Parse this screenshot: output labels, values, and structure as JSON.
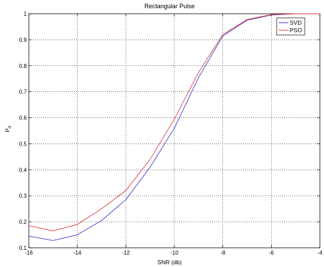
{
  "chart_data": {
    "type": "line",
    "title": "Rectangular Pulse",
    "xlabel": "SNR (db)",
    "ylabel": "P",
    "ylabel_sub": "d",
    "xlim": [
      -16,
      -4
    ],
    "ylim": [
      0.1,
      1
    ],
    "xticks": [
      -16,
      -14,
      -12,
      -10,
      -8,
      -6,
      -4
    ],
    "yticks": [
      0.1,
      0.2,
      0.3,
      0.4,
      0.5,
      0.6,
      0.7,
      0.8,
      0.9,
      1
    ],
    "grid": true,
    "legend_position": "top-right",
    "series": [
      {
        "name": "SVD",
        "color": "#3b3bcc",
        "x": [
          -16,
          -15,
          -14,
          -13,
          -12,
          -11,
          -10,
          -9,
          -8,
          -7,
          -6,
          -5,
          -4
        ],
        "y": [
          0.145,
          0.128,
          0.15,
          0.205,
          0.285,
          0.41,
          0.56,
          0.755,
          0.915,
          0.975,
          0.995,
          1.0,
          1.0
        ]
      },
      {
        "name": "PSO",
        "color": "#e03c3c",
        "x": [
          -16,
          -15,
          -14,
          -13,
          -12,
          -11,
          -10,
          -9,
          -8,
          -7,
          -6,
          -5,
          -4
        ],
        "y": [
          0.185,
          0.165,
          0.19,
          0.25,
          0.32,
          0.44,
          0.595,
          0.775,
          0.92,
          0.978,
          0.997,
          1.0,
          1.0
        ]
      }
    ]
  }
}
